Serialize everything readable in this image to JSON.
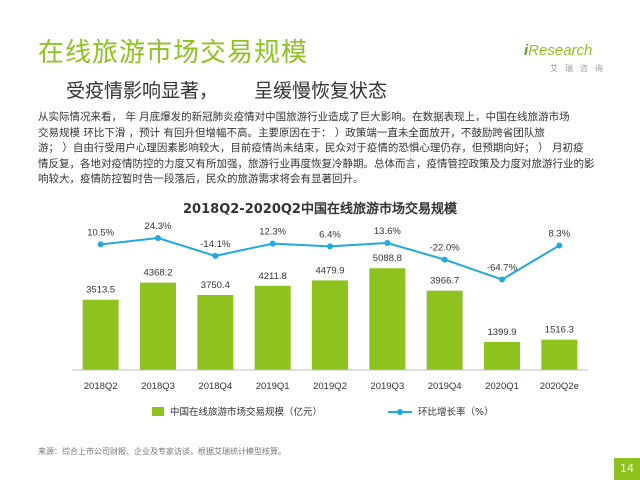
{
  "header": {
    "title": "在线旅游市场交易规模",
    "subtitle_left": "受疫情影响显著，",
    "subtitle_right": "呈缓慢恢复状态"
  },
  "logo": {
    "i": "i",
    "name": "Research",
    "sub": "艾瑞咨询"
  },
  "body": {
    "lines": [
      "从实际情况来看，   年  月底爆发的新冠肺炎疫情对中国旅游行业造成了巨大影响。在数据表现上，中国在线旅游市场",
      "交易规模   环比下滑       ，预计    有回升但增幅不高。主要原因在于：  ）政策端一直未全面放开，不鼓励跨省团队旅",
      "游；  ）自由行受用户心理因素影响较大，目前疫情尚未结束，民众对于疫情的恐惧心理仍存，但预期向好；  ）  月初疫",
      "情反复，各地对疫情防控的力度又有所加强，旅游行业再度恢复冷静期。总体而言，疫情管控政策及力度对旅游行业的影",
      "响较大，疫情防控暂时告一段落后，民众的旅游需求将会有显著回升。"
    ]
  },
  "chart_data": {
    "type": "bar",
    "title": "2018Q2-2020Q2中国在线旅游市场交易规模",
    "categories": [
      "2018Q2",
      "2018Q3",
      "2018Q4",
      "2019Q1",
      "2019Q2",
      "2019Q3",
      "2019Q4",
      "2020Q1",
      "2020Q2e"
    ],
    "series": [
      {
        "name": "中国在线旅游市场交易规模（亿元）",
        "type": "bar",
        "color": "#8dc21f",
        "values": [
          3513.5,
          4368.2,
          3750.4,
          4211.8,
          4479.9,
          5088.8,
          3966.7,
          1399.9,
          1516.3
        ],
        "labels": [
          "3513.5",
          "4368.2",
          "3750.4",
          "4211.8",
          "4479.9",
          "5088.8",
          "3966.7",
          "1399.9",
          "1516.3"
        ]
      },
      {
        "name": "环比增长率（%）",
        "type": "line",
        "color": "#20a8e0",
        "values": [
          10.5,
          24.3,
          -14.1,
          12.3,
          6.4,
          13.6,
          -22.0,
          -64.7,
          8.3
        ],
        "labels": [
          "10.5%",
          "24.3%",
          "-14.1%",
          "12.3%",
          "6.4%",
          "13.6%",
          "-22.0%",
          "-64.7%",
          "8.3%"
        ]
      }
    ],
    "bar_ylim": [
      0,
      6000
    ],
    "line_ylim": [
      -100,
      50
    ],
    "legend_position": "bottom"
  },
  "footer": {
    "source": "来源：综合上市公司财报、企业及专家访谈，根据艾瑞统计模型核算。",
    "page": "14"
  }
}
